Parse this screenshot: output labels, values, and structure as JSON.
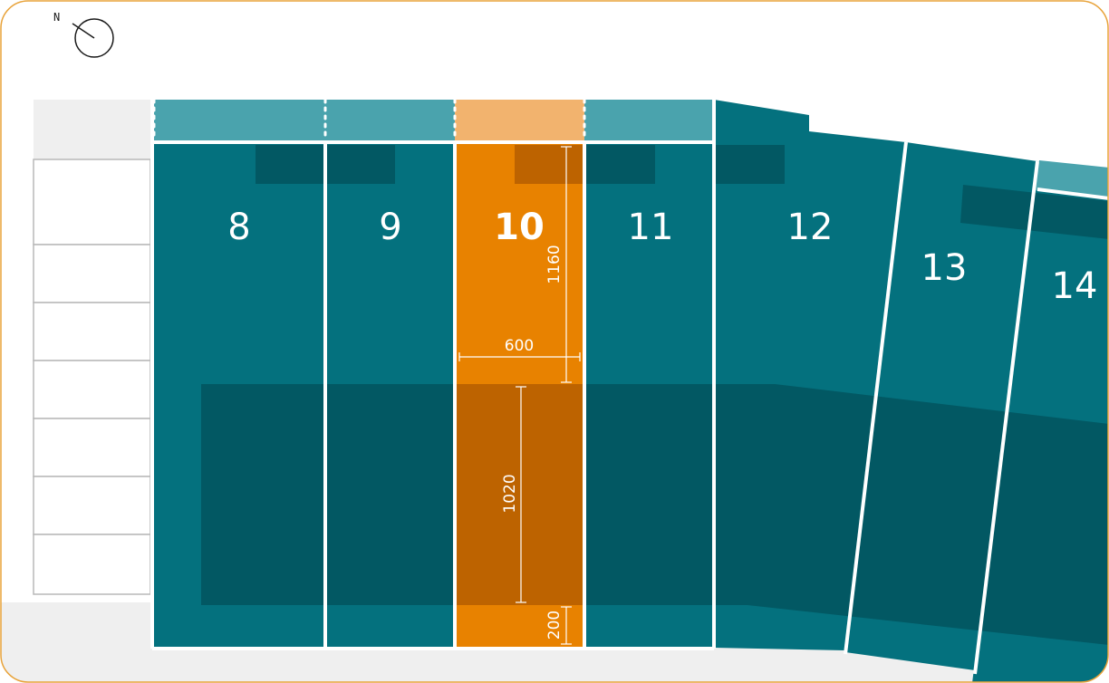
{
  "compass": {
    "label": "N",
    "icon": "north-arrow-icon"
  },
  "lots": [
    {
      "id": "8",
      "label": "8"
    },
    {
      "id": "9",
      "label": "9"
    },
    {
      "id": "10",
      "label": "10",
      "selected": true
    },
    {
      "id": "11",
      "label": "11"
    },
    {
      "id": "12",
      "label": "12"
    },
    {
      "id": "13",
      "label": "13"
    },
    {
      "id": "14",
      "label": "14"
    }
  ],
  "dimensions": {
    "depth_front": "1160",
    "width": "600",
    "depth_rear": "1020",
    "setback": "200"
  },
  "colors": {
    "lot": "#04717e",
    "lot_selected": "#e88200",
    "band": "#4aa3ad",
    "band_selected": "#f2b36e",
    "frame": "#e8a33a",
    "ground": "#efefef"
  }
}
